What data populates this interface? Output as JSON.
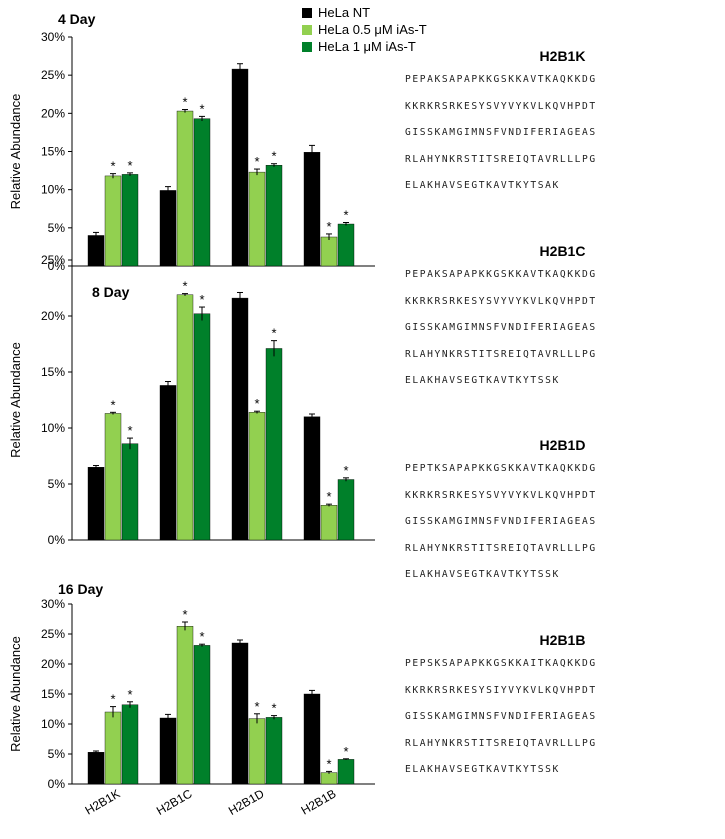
{
  "legend": [
    {
      "label": "HeLa NT",
      "color": "#000000"
    },
    {
      "label": "HeLa 0.5 μM iAs-T",
      "color": "#92D050"
    },
    {
      "label": "HeLa 1 μM iAs-T",
      "color": "#00802A"
    }
  ],
  "chart_data": [
    {
      "type": "bar",
      "title": "4 Day",
      "ylabel": "Relative Abundance",
      "ylim": [
        0,
        30
      ],
      "yticks": [
        "0%",
        "5%",
        "10%",
        "15%",
        "20%",
        "25%",
        "30%"
      ],
      "categories": [
        "H2B1K",
        "H2B1C",
        "H2B1D",
        "H2B1B"
      ],
      "series": [
        {
          "name": "HeLa NT",
          "values": [
            4.0,
            9.9,
            25.8,
            14.9
          ],
          "errors": [
            0.4,
            0.5,
            0.7,
            0.9
          ],
          "sig": [
            false,
            false,
            false,
            false
          ]
        },
        {
          "name": "HeLa 0.5 μM iAs-T",
          "values": [
            11.8,
            20.3,
            12.3,
            3.8
          ],
          "errors": [
            0.3,
            0.2,
            0.4,
            0.4
          ],
          "sig": [
            true,
            true,
            true,
            true
          ]
        },
        {
          "name": "HeLa 1 μM iAs-T",
          "values": [
            12.0,
            19.3,
            13.2,
            5.5
          ],
          "errors": [
            0.2,
            0.3,
            0.2,
            0.2
          ],
          "sig": [
            true,
            true,
            true,
            true
          ]
        }
      ]
    },
    {
      "type": "bar",
      "title": "8 Day",
      "ylabel": "Relative Abundance",
      "ylim": [
        0,
        25
      ],
      "yticks": [
        "0%",
        "5%",
        "10%",
        "15%",
        "20%",
        "25%"
      ],
      "categories": [
        "H2B1K",
        "H2B1C",
        "H2B1D",
        "H2B1B"
      ],
      "series": [
        {
          "name": "HeLa NT",
          "values": [
            6.5,
            13.8,
            21.6,
            11.0
          ],
          "errors": [
            0.15,
            0.35,
            0.5,
            0.25
          ],
          "sig": [
            false,
            false,
            false,
            false
          ]
        },
        {
          "name": "HeLa 0.5 μM iAs-T",
          "values": [
            11.3,
            21.9,
            11.4,
            3.1
          ],
          "errors": [
            0.1,
            0.1,
            0.1,
            0.1
          ],
          "sig": [
            true,
            true,
            true,
            true
          ]
        },
        {
          "name": "HeLa 1 μM iAs-T",
          "values": [
            8.6,
            20.2,
            17.1,
            5.4
          ],
          "errors": [
            0.5,
            0.6,
            0.7,
            0.15
          ],
          "sig": [
            true,
            true,
            true,
            true
          ]
        }
      ]
    },
    {
      "type": "bar",
      "title": "16 Day",
      "ylabel": "Relative Abundance",
      "ylim": [
        0,
        30
      ],
      "yticks": [
        "0%",
        "5%",
        "10%",
        "15%",
        "20%",
        "25%",
        "30%"
      ],
      "xticks": [
        "H2B1K",
        "H2B1C",
        "H2B1D",
        "H2B1B"
      ],
      "categories": [
        "H2B1K",
        "H2B1C",
        "H2B1D",
        "H2B1B"
      ],
      "series": [
        {
          "name": "HeLa NT",
          "values": [
            5.3,
            11.0,
            23.5,
            15.0
          ],
          "errors": [
            0.2,
            0.6,
            0.5,
            0.6
          ],
          "sig": [
            false,
            false,
            false,
            false
          ]
        },
        {
          "name": "HeLa 0.5 μM iAs-T",
          "values": [
            12.0,
            26.3,
            10.9,
            1.9
          ],
          "errors": [
            0.9,
            0.7,
            0.8,
            0.2
          ],
          "sig": [
            true,
            true,
            true,
            true
          ]
        },
        {
          "name": "HeLa 1 μM iAs-T",
          "values": [
            13.2,
            23.1,
            11.1,
            4.1
          ],
          "errors": [
            0.5,
            0.2,
            0.3,
            0.1
          ],
          "sig": [
            true,
            true,
            true,
            true
          ]
        }
      ]
    }
  ],
  "sequences": [
    {
      "title": "H2B1K",
      "lines": [
        "PEPAKSAPAPKKGSKKAVTKAQKKDG",
        "KKRKRSRKESYSVYVYKVLKQVHPDT",
        "GISSKAMGIMNSFVNDIFERIAGEAS",
        "RLAHYNKRSTITSREIQTAVRLLLPG",
        "ELAKHAVSEGTKAVTKYTSAK"
      ]
    },
    {
      "title": "H2B1C",
      "lines": [
        "PEPAKSAPAPKKGSKKAVTKAQKKDG",
        "KKRKRSRKESYSVYVYKVLKQVHPDT",
        "GISSKAMGIMNSFVNDIFERIAGEAS",
        "RLAHYNKRSTITSREIQTAVRLLLPG",
        "ELAKHAVSEGTKAVTKYTSSK"
      ]
    },
    {
      "title": "H2B1D",
      "lines": [
        "PEPTKSAPAPKKGSKKAVTKAQKKDG",
        "KKRKRSRKESYSVYVYKVLKQVHPDT",
        "GISSKAMGIMNSFVNDIFERIAGEAS",
        "RLAHYNKRSTITSREIQTAVRLLLPG",
        "ELAKHAVSEGTKAVTKYTSSK"
      ]
    },
    {
      "title": "H2B1B",
      "lines": [
        "PEPSKSAPAPKKGSKKAITKAQKKDG",
        "KKRKRSRKESYSIYVYKVLKQVHPDT",
        "GISSKAMGIMNSFVNDIFERIAGEAS",
        "RLAHYNKRSTITSREIQTAVRLLLPG",
        "ELAKHAVSEGTKAVTKYTSSK"
      ]
    }
  ]
}
